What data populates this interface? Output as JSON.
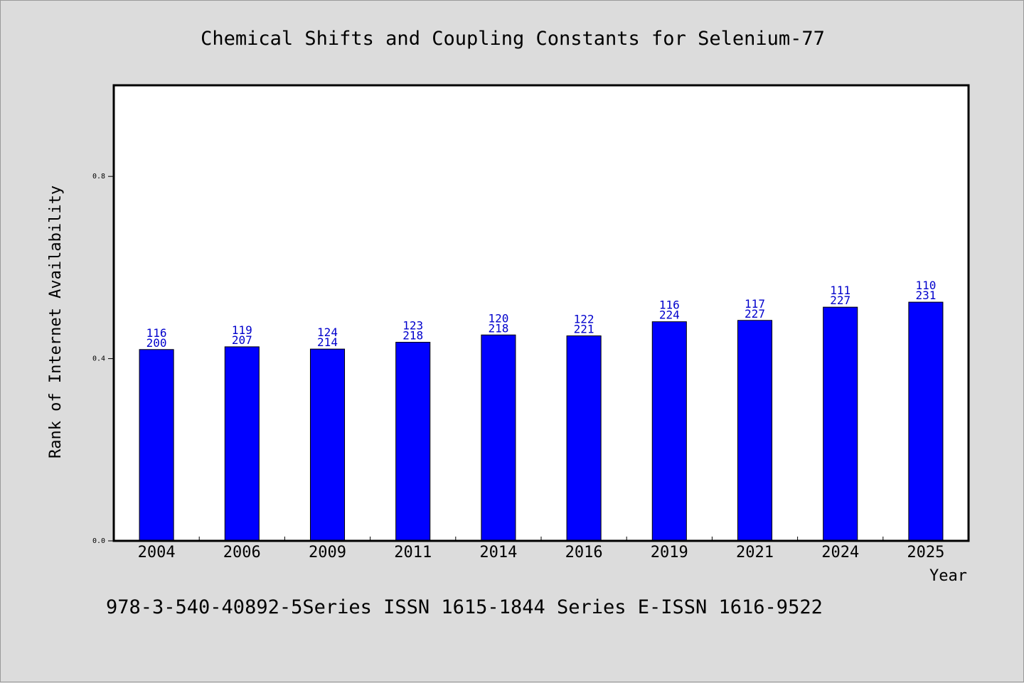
{
  "chart_data": {
    "type": "bar",
    "title": "Chemical Shifts and Coupling Constants for Selenium-77",
    "xlabel": "Year",
    "ylabel": "Rank of Internet Availability",
    "ylim": [
      0,
      1.0
    ],
    "yticks": [
      "0.0",
      "0.4",
      "0.8"
    ],
    "categories": [
      "2004",
      "2006",
      "2009",
      "2011",
      "2014",
      "2016",
      "2019",
      "2021",
      "2024",
      "2025"
    ],
    "values": [
      0.42,
      0.426,
      0.421,
      0.436,
      0.452,
      0.45,
      0.481,
      0.484,
      0.513,
      0.524
    ],
    "label_top": [
      "116",
      "119",
      "124",
      "123",
      "120",
      "122",
      "116",
      "117",
      "111",
      "110"
    ],
    "label_bottom": [
      "200",
      "207",
      "214",
      "218",
      "218",
      "221",
      "224",
      "227",
      "227",
      "231"
    ],
    "bar_color": "#0000ff",
    "label_color": "#0000cc",
    "grid": false,
    "legend": "none"
  },
  "footer": {
    "text": "978-3-540-40892-5Series ISSN 1615-1844 Series E-ISSN 1616-9522"
  }
}
